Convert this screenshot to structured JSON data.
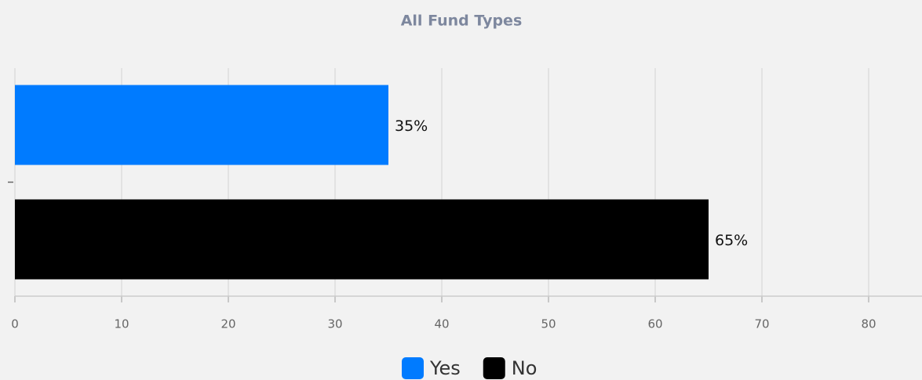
{
  "chart_data": {
    "type": "bar",
    "orientation": "horizontal",
    "title": "All Fund Types",
    "categories": [
      null
    ],
    "series": [
      {
        "name": "Yes",
        "color": "#007bff",
        "values": [
          35
        ],
        "value_labels": [
          "35%"
        ]
      },
      {
        "name": "No",
        "color": "#000000",
        "values": [
          65
        ],
        "value_labels": [
          "65%"
        ]
      }
    ],
    "xlim": [
      0,
      85
    ],
    "xticks": [
      0,
      10,
      20,
      30,
      40,
      50,
      60,
      70,
      80
    ],
    "grid": true,
    "legend": "bottom"
  }
}
